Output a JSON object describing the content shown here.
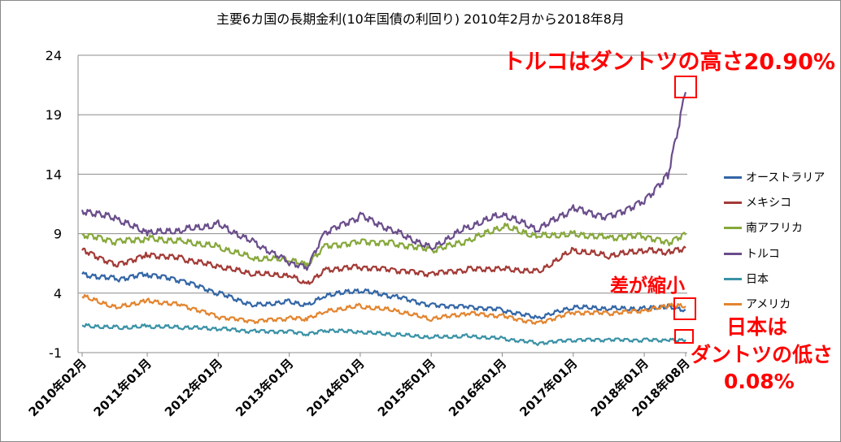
{
  "chart_data": {
    "type": "line",
    "title": "主要6カ国の長期金利(10年国債の利回り)  2010年2月から2018年8月",
    "xlabel": "",
    "ylabel": "",
    "ylim": [
      -1,
      24
    ],
    "yticks": [
      "-1",
      "4",
      "9",
      "14",
      "19",
      "24"
    ],
    "x": [
      "2010-02",
      "2010-08",
      "2011-01",
      "2011-07",
      "2012-01",
      "2012-07",
      "2013-01",
      "2013-04",
      "2013-07",
      "2014-01",
      "2014-07",
      "2015-01",
      "2015-07",
      "2016-01",
      "2016-07",
      "2017-01",
      "2017-07",
      "2018-01",
      "2018-05",
      "2018-08"
    ],
    "xticks": [
      "2010年02月",
      "2011年01月",
      "2012年01月",
      "2013年01月",
      "2014年01月",
      "2015年01月",
      "2016年01月",
      "2017年01月",
      "2018年01月",
      "2018年08月"
    ],
    "grid": "horizontal",
    "legend_position": "right",
    "series": [
      {
        "name": "オーストラリア",
        "color": "#3366a6",
        "values": [
          5.6,
          5.2,
          5.6,
          5.0,
          4.0,
          3.0,
          3.3,
          3.0,
          3.8,
          4.2,
          3.7,
          3.0,
          2.9,
          2.6,
          1.9,
          2.8,
          2.7,
          2.7,
          2.9,
          2.6
        ]
      },
      {
        "name": "メキシコ",
        "color": "#a33a36",
        "values": [
          7.6,
          6.4,
          7.3,
          6.9,
          6.2,
          5.6,
          5.5,
          4.7,
          6.0,
          6.2,
          5.9,
          5.6,
          6.0,
          6.1,
          5.8,
          7.6,
          7.1,
          7.6,
          7.4,
          7.8
        ]
      },
      {
        "name": "南アフリカ",
        "color": "#86a83a",
        "values": [
          8.9,
          8.3,
          8.6,
          8.4,
          7.9,
          6.9,
          6.8,
          6.3,
          7.9,
          8.4,
          8.2,
          7.6,
          8.3,
          9.6,
          8.8,
          9.0,
          8.7,
          8.8,
          8.2,
          8.9
        ]
      },
      {
        "name": "トルコ",
        "color": "#6a4d8b",
        "values": [
          11.0,
          10.2,
          9.0,
          9.3,
          9.8,
          8.3,
          6.6,
          6.2,
          9.0,
          10.5,
          9.2,
          7.8,
          9.5,
          10.6,
          9.3,
          11.1,
          10.4,
          11.8,
          14.0,
          20.9
        ]
      },
      {
        "name": "日本",
        "color": "#3a92a6",
        "values": [
          1.3,
          1.1,
          1.2,
          1.1,
          1.0,
          0.8,
          0.8,
          0.6,
          0.9,
          0.7,
          0.5,
          0.3,
          0.4,
          0.2,
          -0.2,
          0.05,
          0.07,
          0.06,
          0.05,
          0.08
        ]
      },
      {
        "name": "アメリカ",
        "color": "#e3852f",
        "values": [
          3.7,
          2.8,
          3.4,
          3.0,
          2.0,
          1.6,
          1.9,
          1.8,
          2.5,
          2.9,
          2.5,
          1.8,
          2.3,
          2.1,
          1.5,
          2.4,
          2.3,
          2.5,
          2.9,
          2.9
        ]
      }
    ]
  },
  "annotations": {
    "turkey_note": "トルコはダントツの高さ20.90%",
    "spread_note": "差が縮小",
    "japan_note_line1": "日本は",
    "japan_note_line2": "ダントツの低さ",
    "japan_note_line3": "0.08%",
    "highlight_color": "#ff0000"
  }
}
